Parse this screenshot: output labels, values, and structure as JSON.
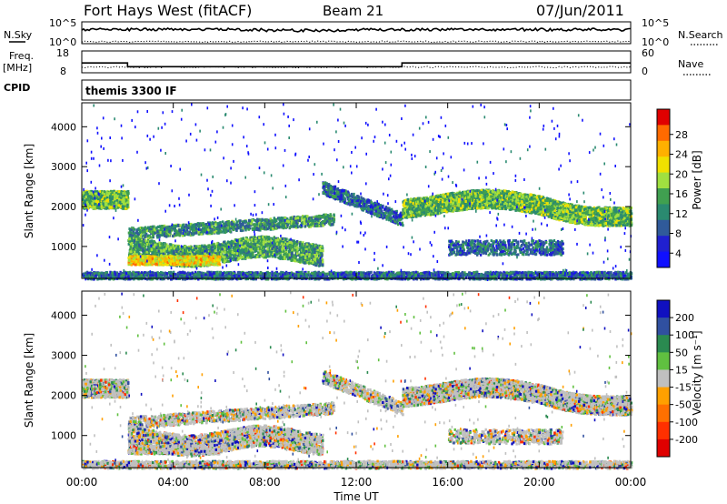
{
  "header": {
    "station": "Fort Hays West (fitACF)",
    "beam": "Beam 21",
    "date": "07/Jun/2011"
  },
  "noise_panel": {
    "left_label": "N.Sky",
    "right_label": "N.Search",
    "ticks": [
      "10^5",
      "10^0"
    ]
  },
  "freq_panel": {
    "left_label_1": "Freq.",
    "left_label_2": "[MHz]",
    "right_label": "Nave",
    "left_ticks": [
      "18",
      "8"
    ],
    "right_ticks": [
      "60",
      "0"
    ]
  },
  "cpid": {
    "label": "CPID",
    "value": "themis 3300 IF"
  },
  "chart_data": [
    {
      "type": "heatmap",
      "panel": "power",
      "ylabel": "Slant Range [km]",
      "ylim": [
        200,
        4600
      ],
      "yticks": [
        "4000",
        "3000",
        "2000",
        "1000"
      ],
      "xlim_hours": [
        0,
        24
      ],
      "xticks": [
        "00:00",
        "04:00",
        "08:00",
        "12:00",
        "16:00",
        "20:00",
        "00:00"
      ],
      "xlabel": "Time UT",
      "colorbar": {
        "label": "Power [dB]",
        "ticks": [
          "28",
          "24",
          "20",
          "16",
          "12",
          "8",
          "4"
        ],
        "colors": [
          "#e00000",
          "#ff6a00",
          "#ffb000",
          "#f0e000",
          "#a0e040",
          "#40a050",
          "#2a8a70",
          "#305a9a",
          "#2020d0",
          "#1010ff"
        ]
      }
    },
    {
      "type": "heatmap",
      "panel": "velocity",
      "ylabel": "Slant Range [km]",
      "ylim": [
        200,
        4600
      ],
      "yticks": [
        "4000",
        "3000",
        "2000",
        "1000"
      ],
      "xlim_hours": [
        0,
        24
      ],
      "xticks": [
        "00:00",
        "04:00",
        "08:00",
        "12:00",
        "16:00",
        "20:00",
        "00:00"
      ],
      "xlabel": "Time UT",
      "colorbar": {
        "label": "Velocity [m s⁻¹]",
        "ticks": [
          "200",
          "100",
          "50",
          "15",
          "-15",
          "-50",
          "-100",
          "-200"
        ],
        "colors": [
          "#1010c0",
          "#3050a0",
          "#2a8a50",
          "#60c040",
          "#c0c0c0",
          "#ffa000",
          "#ff7000",
          "#ff3000",
          "#e00000"
        ]
      }
    }
  ]
}
